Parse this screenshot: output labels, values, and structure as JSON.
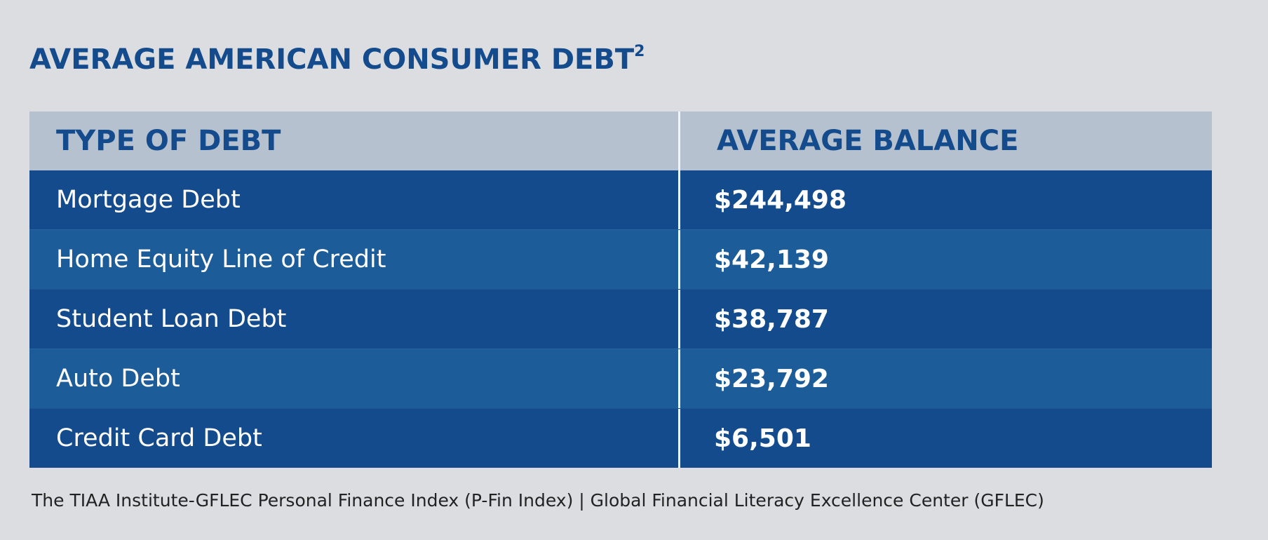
{
  "chart_data": {
    "type": "table",
    "title": "AVERAGE AMERICAN CONSUMER DEBT",
    "title_superscript": "2",
    "columns": [
      "TYPE OF DEBT",
      "AVERAGE BALANCE"
    ],
    "rows": [
      {
        "type": "Mortgage Debt",
        "balance": "$244,498"
      },
      {
        "type": "Home Equity Line of Credit",
        "balance": "$42,139"
      },
      {
        "type": "Student Loan Debt",
        "balance": "$38,787"
      },
      {
        "type": "Auto Debt",
        "balance": "$23,792"
      },
      {
        "type": "Credit Card Debt",
        "balance": "$6,501"
      }
    ],
    "source": "The TIAA Institute-GFLEC Personal Finance Index (P-Fin Index) | Global Financial Literacy Excellence Center (GFLEC)"
  },
  "colors": {
    "background": "#dcdde0",
    "header_background": "#b5c1cf",
    "row_dark": "#134b8c",
    "row_light": "#1c5c99",
    "title_text": "#134b8c",
    "cell_text": "#ffffff"
  }
}
